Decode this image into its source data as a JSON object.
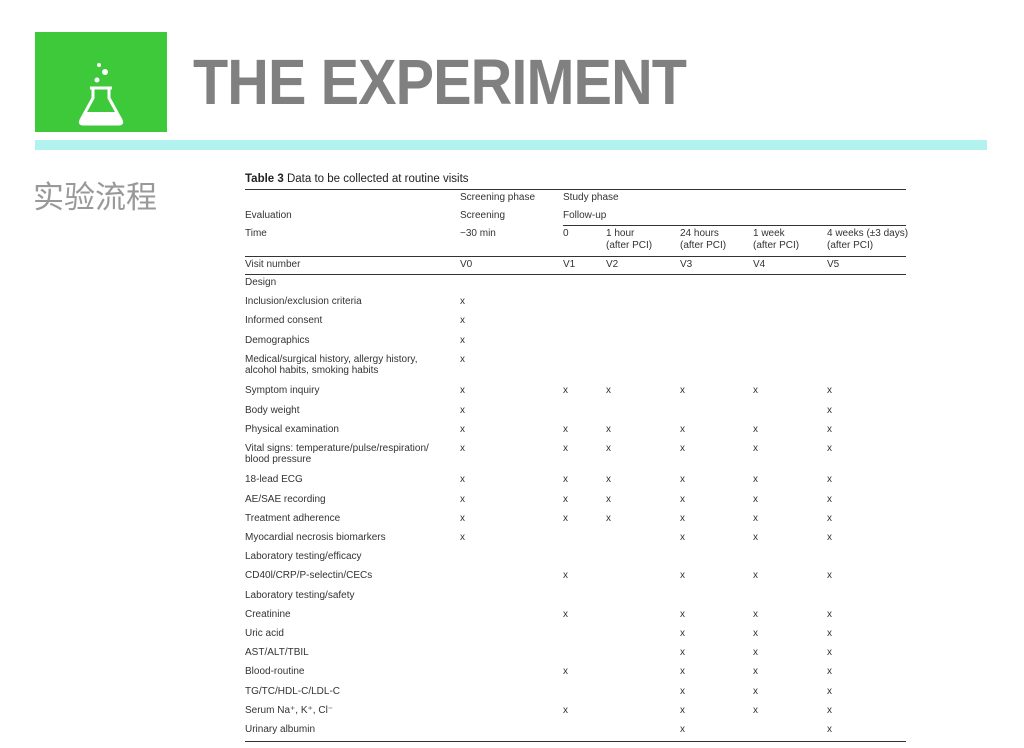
{
  "header": {
    "title": "THE EXPERIMENT",
    "section": "实验流程"
  },
  "table": {
    "caption": {
      "label": "Table 3",
      "text": "Data to be collected at routine visits"
    },
    "header_rows": [
      [
        null,
        "Screening phase",
        "Study phase",
        null,
        null,
        null,
        null
      ],
      [
        "Evaluation",
        "Screening",
        "Follow-up",
        null,
        null,
        null,
        null
      ],
      [
        "Time",
        "−30 min",
        "0",
        "1 hour\n(after PCI)",
        "24 hours\n(after PCI)",
        "1 week\n(after PCI)",
        "4 weeks (±3 days)\n(after PCI)"
      ],
      [
        "Visit number",
        "V0",
        "V1",
        "V2",
        "V3",
        "V4",
        "V5"
      ]
    ],
    "rows": [
      [
        "Design",
        null,
        null,
        null,
        null,
        null,
        null
      ],
      [
        "Inclusion/exclusion criteria",
        "x",
        null,
        null,
        null,
        null,
        null
      ],
      [
        "Informed consent",
        "x",
        null,
        null,
        null,
        null,
        null
      ],
      [
        "Demographics",
        "x",
        null,
        null,
        null,
        null,
        null
      ],
      [
        "Medical/surgical history, allergy history,\nalcohol habits, smoking habits",
        "x",
        null,
        null,
        null,
        null,
        null
      ],
      [
        "Symptom inquiry",
        "x",
        "x",
        "x",
        "x",
        "x",
        "x"
      ],
      [
        "Body weight",
        "x",
        null,
        null,
        null,
        null,
        "x"
      ],
      [
        "Physical examination",
        "x",
        "x",
        "x",
        "x",
        "x",
        "x"
      ],
      [
        "Vital signs: temperature/pulse/respiration/\nblood pressure",
        "x",
        "x",
        "x",
        "x",
        "x",
        "x"
      ],
      [
        "18-lead ECG",
        "x",
        "x",
        "x",
        "x",
        "x",
        "x"
      ],
      [
        "AE/SAE recording",
        "x",
        "x",
        "x",
        "x",
        "x",
        "x"
      ],
      [
        "Treatment adherence",
        "x",
        "x",
        "x",
        "x",
        "x",
        "x"
      ],
      [
        "Myocardial necrosis biomarkers",
        "x",
        null,
        null,
        "x",
        "x",
        "x"
      ],
      [
        "Laboratory testing/efficacy",
        null,
        null,
        null,
        null,
        null,
        null
      ],
      [
        "CD40l/CRP/P-selectin/CECs",
        null,
        "x",
        null,
        "x",
        "x",
        "x"
      ],
      [
        "Laboratory testing/safety",
        null,
        null,
        null,
        null,
        null,
        null
      ],
      [
        "Creatinine",
        null,
        "x",
        null,
        "x",
        "x",
        "x"
      ],
      [
        "Uric acid",
        null,
        null,
        null,
        "x",
        "x",
        "x"
      ],
      [
        "AST/ALT/TBIL",
        null,
        null,
        null,
        "x",
        "x",
        "x"
      ],
      [
        "Blood-routine",
        null,
        "x",
        null,
        "x",
        "x",
        "x"
      ],
      [
        "TG/TC/HDL-C/LDL-C",
        null,
        null,
        null,
        "x",
        "x",
        "x"
      ],
      [
        "Serum Na⁺, K⁺, Cl⁻",
        null,
        "x",
        null,
        "x",
        "x",
        "x"
      ],
      [
        "Urinary albumin",
        null,
        null,
        null,
        "x",
        null,
        "x"
      ]
    ]
  }
}
